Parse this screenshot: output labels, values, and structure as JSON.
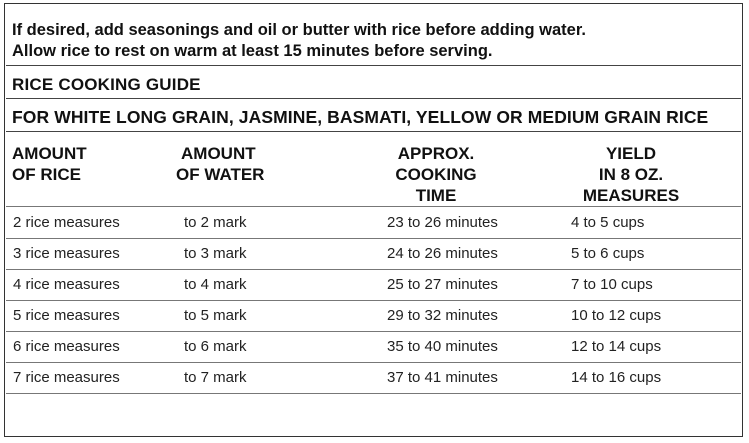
{
  "intro": {
    "line1": "If desired, add seasonings and oil or butter with rice before adding water.",
    "line2": "Allow rice to rest on warm at least 15 minutes before serving."
  },
  "guide_title": "RICE COOKING GUIDE",
  "rice_types": "FOR WHITE LONG GRAIN, JASMINE, BASMATI, YELLOW OR MEDIUM GRAIN RICE",
  "headers": {
    "rice": [
      "AMOUNT",
      "OF RICE"
    ],
    "water": [
      "AMOUNT",
      "OF WATER"
    ],
    "time": [
      "APPROX.",
      "COOKING",
      "TIME"
    ],
    "yield": [
      "YIELD",
      "IN 8 OZ.",
      "MEASURES"
    ]
  },
  "rows": [
    {
      "rice": "2 rice measures",
      "water": "to 2 mark",
      "time": "23 to 26 minutes",
      "yield": "4 to 5 cups"
    },
    {
      "rice": "3 rice measures",
      "water": "to 3 mark",
      "time": "24 to 26 minutes",
      "yield": "5 to 6 cups"
    },
    {
      "rice": "4 rice measures",
      "water": "to 4 mark",
      "time": "25 to 27 minutes",
      "yield": "7 to 10 cups"
    },
    {
      "rice": "5 rice measures",
      "water": "to 5 mark",
      "time": "29 to 32 minutes",
      "yield": "10 to 12 cups"
    },
    {
      "rice": "6 rice measures",
      "water": "to 6 mark",
      "time": "35 to 40 minutes",
      "yield": "12 to 14 cups"
    },
    {
      "rice": "7 rice measures",
      "water": "to 7 mark",
      "time": "37 to 41 minutes",
      "yield": "14 to 16 cups"
    }
  ]
}
